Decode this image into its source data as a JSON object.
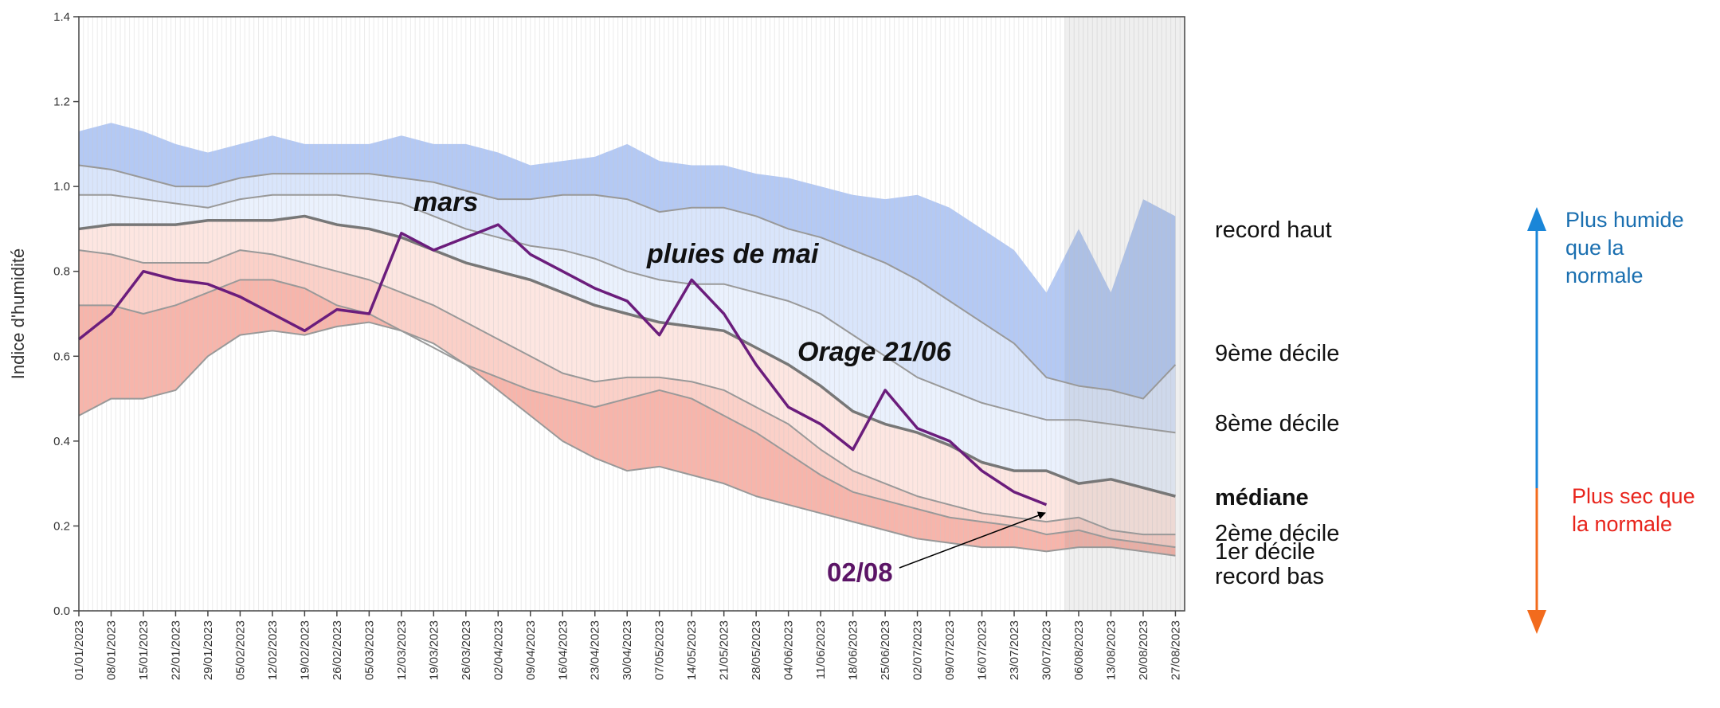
{
  "chart_data": {
    "type": "line",
    "y_label": "Indice d'humidité",
    "x": [
      "01/01/2023",
      "08/01/2023",
      "15/01/2023",
      "22/01/2023",
      "29/01/2023",
      "05/02/2023",
      "12/02/2023",
      "19/02/2023",
      "26/02/2023",
      "05/03/2023",
      "12/03/2023",
      "19/03/2023",
      "26/03/2023",
      "02/04/2023",
      "09/04/2023",
      "16/04/2023",
      "23/04/2023",
      "30/04/2023",
      "07/05/2023",
      "14/05/2023",
      "21/05/2023",
      "28/05/2023",
      "04/06/2023",
      "11/06/2023",
      "18/06/2023",
      "25/06/2023",
      "02/07/2023",
      "09/07/2023",
      "16/07/2023",
      "23/07/2023",
      "30/07/2023",
      "06/08/2023",
      "13/08/2023",
      "20/08/2023",
      "27/08/2023"
    ],
    "xlim": [
      "01/01/2023",
      "29/08/2023"
    ],
    "forecast_start": "03/08/2023",
    "ylim": [
      0,
      1.4
    ],
    "yticks": [
      {
        "value": 0,
        "label": "0.0"
      },
      0.2,
      0.4,
      0.6,
      0.8,
      {
        "value": 1,
        "label": "1.0"
      },
      1.2,
      1.4
    ],
    "series": [
      {
        "name": "record haut",
        "color": "#b4c9f4",
        "area": true,
        "values": [
          1.13,
          1.15,
          1.13,
          1.1,
          1.08,
          1.1,
          1.12,
          1.1,
          1.1,
          1.1,
          1.12,
          1.1,
          1.1,
          1.08,
          1.05,
          1.06,
          1.07,
          1.1,
          1.06,
          1.05,
          1.05,
          1.03,
          1.02,
          1.0,
          0.98,
          0.97,
          0.98,
          0.95,
          0.9,
          0.85,
          0.75,
          0.9,
          0.75,
          0.97,
          0.93
        ]
      },
      {
        "name": "9ème décile",
        "color": "#d9e5fb",
        "area": true,
        "values": [
          1.05,
          1.04,
          1.02,
          1.0,
          1.0,
          1.02,
          1.03,
          1.03,
          1.03,
          1.03,
          1.02,
          1.01,
          0.99,
          0.97,
          0.97,
          0.98,
          0.98,
          0.97,
          0.94,
          0.95,
          0.95,
          0.93,
          0.9,
          0.88,
          0.85,
          0.82,
          0.78,
          0.73,
          0.68,
          0.63,
          0.55,
          0.53,
          0.52,
          0.5,
          0.58
        ]
      },
      {
        "name": "8ème décile",
        "color": "#eaf1fd",
        "area": true,
        "values": [
          0.98,
          0.98,
          0.97,
          0.96,
          0.95,
          0.97,
          0.98,
          0.98,
          0.98,
          0.97,
          0.96,
          0.93,
          0.9,
          0.88,
          0.86,
          0.85,
          0.83,
          0.8,
          0.78,
          0.77,
          0.77,
          0.75,
          0.73,
          0.7,
          0.65,
          0.6,
          0.55,
          0.52,
          0.49,
          0.47,
          0.45,
          0.45,
          0.44,
          0.43,
          0.42
        ]
      },
      {
        "name": "médiane",
        "color": "#fde6e1",
        "area": true,
        "values": [
          0.9,
          0.91,
          0.91,
          0.91,
          0.92,
          0.92,
          0.92,
          0.93,
          0.91,
          0.9,
          0.88,
          0.85,
          0.82,
          0.8,
          0.78,
          0.75,
          0.72,
          0.7,
          0.68,
          0.67,
          0.66,
          0.62,
          0.58,
          0.53,
          0.47,
          0.44,
          0.42,
          0.39,
          0.35,
          0.33,
          0.33,
          0.3,
          0.31,
          0.29,
          0.27
        ]
      },
      {
        "name": "2ème décile",
        "color": "#fbd0c8",
        "area": true,
        "values": [
          0.85,
          0.84,
          0.82,
          0.82,
          0.82,
          0.85,
          0.84,
          0.82,
          0.8,
          0.78,
          0.75,
          0.72,
          0.68,
          0.64,
          0.6,
          0.56,
          0.54,
          0.55,
          0.55,
          0.54,
          0.52,
          0.48,
          0.44,
          0.38,
          0.33,
          0.3,
          0.27,
          0.25,
          0.23,
          0.22,
          0.21,
          0.22,
          0.19,
          0.18,
          0.18
        ]
      },
      {
        "name": "1er décile",
        "color": "#f7b5ab",
        "area": true,
        "values": [
          0.72,
          0.72,
          0.7,
          0.72,
          0.75,
          0.78,
          0.78,
          0.76,
          0.72,
          0.7,
          0.66,
          0.62,
          0.58,
          0.55,
          0.52,
          0.5,
          0.48,
          0.5,
          0.52,
          0.5,
          0.46,
          0.42,
          0.37,
          0.32,
          0.28,
          0.26,
          0.24,
          0.22,
          0.21,
          0.2,
          0.18,
          0.19,
          0.17,
          0.16,
          0.15
        ]
      },
      {
        "name": "record bas",
        "color": "#ffffff",
        "area": true,
        "values": [
          0.46,
          0.5,
          0.5,
          0.52,
          0.6,
          0.65,
          0.66,
          0.65,
          0.67,
          0.68,
          0.66,
          0.63,
          0.58,
          0.52,
          0.46,
          0.4,
          0.36,
          0.33,
          0.34,
          0.32,
          0.3,
          0.27,
          0.25,
          0.23,
          0.21,
          0.19,
          0.17,
          0.16,
          0.15,
          0.15,
          0.14,
          0.15,
          0.15,
          0.14,
          0.13
        ]
      },
      {
        "color": "#6b1d7c",
        "area": false,
        "values": [
          0.64,
          0.7,
          0.8,
          0.78,
          0.77,
          0.74,
          0.7,
          0.66,
          0.71,
          0.7,
          0.89,
          0.85,
          0.88,
          0.91,
          0.84,
          0.8,
          0.76,
          0.73,
          0.65,
          0.78,
          0.7,
          0.58,
          0.48,
          0.44,
          0.38,
          0.52,
          0.43,
          0.4,
          0.33,
          0.28,
          0.25,
          null,
          null,
          null,
          null
        ]
      }
    ],
    "annotations": [
      "mars",
      "pluies de mai",
      "Orage 21/06",
      "02/08"
    ],
    "wetter": {
      "label": [
        "Plus humide",
        "que la",
        "normale"
      ],
      "color": "#1a86d8",
      "text_color": "#1a6fb0"
    },
    "drier": {
      "label": [
        "Plus sec que",
        "la normale"
      ],
      "color": "#f26b1d",
      "text_color": "#e8241c"
    }
  }
}
